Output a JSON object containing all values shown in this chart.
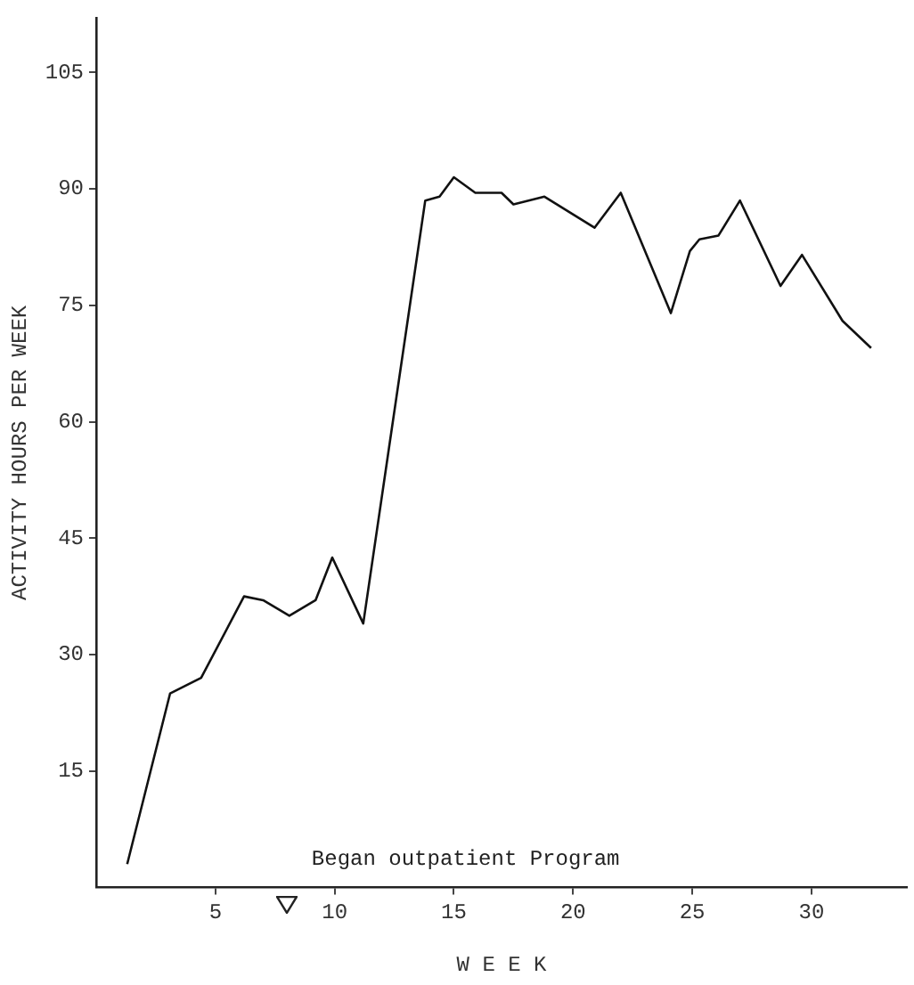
{
  "chart_data": {
    "type": "line",
    "xlabel": "W E E K",
    "ylabel": "ACTIVITY HOURS PER WEEK",
    "x": [
      1.3,
      3.1,
      4.4,
      6.2,
      7,
      8.1,
      9.2,
      9.9,
      11.2,
      13.8,
      14.4,
      15,
      15.9,
      17,
      17.5,
      18.8,
      20.9,
      22,
      24.1,
      24.9,
      25.3,
      26.1,
      27,
      28.7,
      29.6,
      31.3,
      32.5
    ],
    "series": [
      {
        "color": "#111111",
        "values": [
          3,
          25,
          27,
          37.5,
          37,
          35,
          37,
          42.5,
          34,
          88.5,
          89,
          91.5,
          89.5,
          89.5,
          88,
          89,
          85,
          89.5,
          74,
          82,
          83.5,
          84,
          88.5,
          77.5,
          81.5,
          73,
          69.5
        ]
      }
    ],
    "xlim": [
      0,
      34
    ],
    "xticks": [
      5,
      10,
      15,
      20,
      25,
      30
    ],
    "ylim": [
      0,
      112
    ],
    "yticks": [
      15,
      30,
      45,
      60,
      75,
      90,
      105
    ],
    "grid": false,
    "legend": false,
    "marker": "none",
    "line_style": "solid",
    "annotations": [
      "Began outpatient Program"
    ]
  }
}
